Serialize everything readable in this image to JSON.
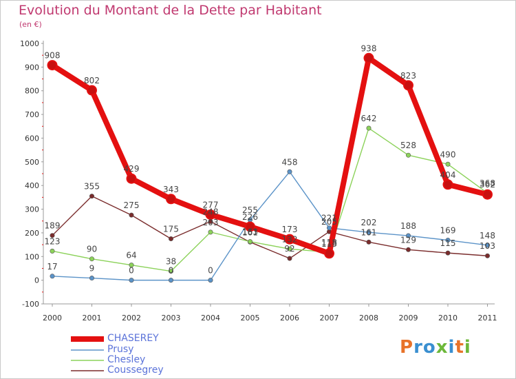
{
  "title": "Evolution du Montant de la Dette par Habitant",
  "subtitle": "(en €)",
  "logo": {
    "text": "Proxiti",
    "letters": [
      "P",
      "r",
      "o",
      "x",
      "i",
      "t",
      "i"
    ],
    "colors": [
      "#e8732a",
      "#3a8fd0",
      "#3a8fd0",
      "#6cb83a",
      "#3a8fd0",
      "#e8732a",
      "#6cb83a"
    ]
  },
  "chart_data": {
    "type": "line",
    "x": [
      "2000",
      "2001",
      "2002",
      "2003",
      "2004",
      "2005",
      "2006",
      "2007",
      "2008",
      "2009",
      "2010",
      "2011"
    ],
    "ylim": [
      -100,
      1000
    ],
    "yticks": [
      -100,
      0,
      100,
      200,
      300,
      400,
      500,
      600,
      700,
      800,
      900,
      1000
    ],
    "grid": false,
    "legend_position": "bottom-left",
    "series": [
      {
        "name": "CHASEREY",
        "color": "#e41010",
        "values": [
          908,
          802,
          429,
          343,
          277,
          226,
          173,
          113,
          938,
          823,
          404,
          362
        ],
        "labels": [
          "908",
          "802",
          "429",
          "343",
          "277",
          "226",
          "173",
          "113",
          "938",
          "823",
          "404",
          "362"
        ]
      },
      {
        "name": "Prusy",
        "color": "#5b93c8",
        "values": [
          17,
          9,
          0,
          0,
          0,
          255,
          458,
          221,
          202,
          188,
          169,
          148
        ],
        "labels": [
          "17",
          "9",
          "0",
          "0",
          "0",
          "255",
          "458",
          "221",
          "202",
          "188",
          "169",
          "148"
        ]
      },
      {
        "name": "Chesley",
        "color": "#8cd25a",
        "values": [
          123,
          90,
          64,
          38,
          203,
          163,
          132,
          118,
          642,
          528,
          490,
          368
        ],
        "labels": [
          "123",
          "90",
          "64",
          "38",
          "203",
          "163",
          "132",
          "118",
          "642",
          "528",
          "490",
          "368"
        ]
      },
      {
        "name": "Coussegrey",
        "color": "#7a2c2c",
        "values": [
          189,
          355,
          275,
          175,
          248,
          161,
          92,
          205,
          161,
          129,
          115,
          103
        ],
        "labels": [
          "189",
          "355",
          "275",
          "175",
          "248",
          "161",
          "92",
          "205",
          "161",
          "129",
          "115",
          "103"
        ]
      }
    ]
  }
}
